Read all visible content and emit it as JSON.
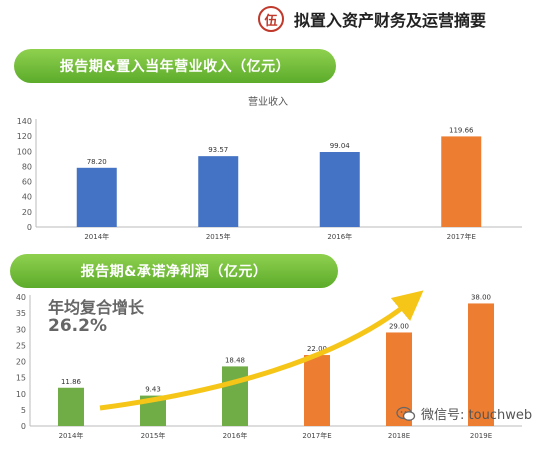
{
  "header": {
    "badge": "伍",
    "title": "拟置入资产财务及运营摘要"
  },
  "pill1": {
    "label": "报告期&置入当年营业收入（亿元）"
  },
  "pill2": {
    "label": "报告期&承诺净利润（亿元）"
  },
  "annotation": {
    "title": "年均复合增长",
    "value": "26.2%"
  },
  "watermark": {
    "text": "微信号: touchweb"
  },
  "colors": {
    "blue": "#4472c4",
    "orange": "#ed7d31",
    "green": "#70ad47",
    "arrow": "#f5c518",
    "pill": "#6dbf35"
  },
  "chart_data": [
    {
      "type": "bar",
      "title": "营业收入",
      "categories": [
        "2014年",
        "2015年",
        "2016年",
        "2017年E"
      ],
      "values": [
        78.2,
        93.57,
        99.04,
        119.66
      ],
      "value_labels": [
        "78.20",
        "93.57",
        "99.04",
        "119.66"
      ],
      "colors": [
        "#4472c4",
        "#4472c4",
        "#4472c4",
        "#ed7d31"
      ],
      "ylim": [
        0,
        140
      ],
      "yticks": [
        "0",
        "20",
        "40",
        "60",
        "80",
        "100",
        "120",
        "140"
      ],
      "grid": false
    },
    {
      "type": "bar",
      "categories": [
        "2014年",
        "2015年",
        "2016年",
        "2017年E",
        "2018E",
        "2019E"
      ],
      "values": [
        11.86,
        9.43,
        18.48,
        22.0,
        29.0,
        38.0
      ],
      "value_labels": [
        "11.86",
        "9.43",
        "18.48",
        "22.00",
        "29.00",
        "38.00"
      ],
      "colors": [
        "#70ad47",
        "#70ad47",
        "#70ad47",
        "#ed7d31",
        "#ed7d31",
        "#ed7d31"
      ],
      "ylim": [
        0,
        40
      ],
      "yticks": [
        "0",
        "5",
        "10",
        "15",
        "20",
        "25",
        "30",
        "35",
        "40"
      ],
      "grid": false
    }
  ]
}
